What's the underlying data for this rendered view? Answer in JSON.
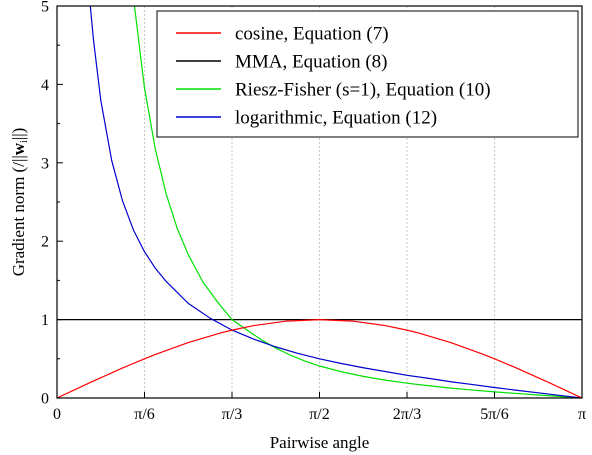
{
  "chart_data": {
    "type": "line",
    "title": "",
    "xlabel": "Pairwise angle",
    "ylabel_prefix": "Gradient norm (/||",
    "ylabel_bold": "w",
    "ylabel_sub": "i",
    "ylabel_suffix": "||)",
    "xlim": [
      0,
      3.141593
    ],
    "ylim": [
      0,
      5
    ],
    "x_ticks": [
      {
        "value": 0,
        "label": "0"
      },
      {
        "value": 0.523599,
        "label": "π/6"
      },
      {
        "value": 1.047198,
        "label": "π/3"
      },
      {
        "value": 1.570796,
        "label": "π/2"
      },
      {
        "value": 2.094395,
        "label": "2π/3"
      },
      {
        "value": 2.617994,
        "label": "5π/6"
      },
      {
        "value": 3.141593,
        "label": "π"
      }
    ],
    "y_ticks": [
      {
        "value": 0,
        "label": "0"
      },
      {
        "value": 1,
        "label": "1"
      },
      {
        "value": 2,
        "label": "2"
      },
      {
        "value": 3,
        "label": "3"
      },
      {
        "value": 4,
        "label": "4"
      },
      {
        "value": 5,
        "label": "5"
      }
    ],
    "grid": "vertical dotted",
    "legend_position": "top-right",
    "series": [
      {
        "name": "cosine, Equation (7)",
        "color": "#ff0000",
        "x": [
          0,
          0.1963,
          0.3927,
          0.5236,
          0.589,
          0.7854,
          0.9817,
          1.0472,
          1.1781,
          1.3744,
          1.5708,
          1.7671,
          1.9635,
          2.0944,
          2.1598,
          2.3562,
          2.5525,
          2.618,
          2.7489,
          2.9452,
          3.1416
        ],
        "y": [
          0,
          0.195,
          0.383,
          0.5,
          0.556,
          0.707,
          0.831,
          0.866,
          0.924,
          0.981,
          1.0,
          0.981,
          0.924,
          0.866,
          0.831,
          0.707,
          0.556,
          0.5,
          0.383,
          0.195,
          0
        ]
      },
      {
        "name": "MMA, Equation (8)",
        "color": "#000000",
        "x": [
          0,
          3.1416
        ],
        "y": [
          1,
          1
        ]
      },
      {
        "name": "Riesz-Fisher (s=1), Equation (10)",
        "color": "#00e000",
        "x": [
          0.4636,
          0.5236,
          0.589,
          0.6545,
          0.72,
          0.7854,
          0.8727,
          0.9599,
          1.0472,
          1.1345,
          1.2217,
          1.309,
          1.3963,
          1.4835,
          1.5708,
          1.7017,
          1.8326,
          1.9635,
          2.0944,
          2.2253,
          2.3562,
          2.4871,
          2.618,
          2.7489,
          2.8798,
          3.0107,
          3.1416
        ],
        "y": [
          5.0,
          3.955,
          3.167,
          2.593,
          2.16,
          1.828,
          1.481,
          1.226,
          1.0,
          0.87,
          0.744,
          0.637,
          0.547,
          0.471,
          0.408,
          0.335,
          0.276,
          0.228,
          0.189,
          0.156,
          0.126,
          0.101,
          0.078,
          0.058,
          0.038,
          0.019,
          0.0
        ]
      },
      {
        "name": "logarithmic, Equation (12)",
        "color": "#0000cc",
        "x": [
          0.1993,
          0.2182,
          0.2618,
          0.3272,
          0.3927,
          0.4581,
          0.5236,
          0.589,
          0.6545,
          0.7854,
          0.9163,
          1.0472,
          1.1781,
          1.309,
          1.4399,
          1.5708,
          1.7017,
          1.8326,
          1.9635,
          2.0944,
          2.2253,
          2.3562,
          2.4871,
          2.618,
          2.7489,
          2.8798,
          3.0107,
          3.1416
        ],
        "y": [
          5.0,
          4.57,
          3.8,
          3.03,
          2.51,
          2.14,
          1.866,
          1.653,
          1.483,
          1.207,
          1.018,
          0.866,
          0.75,
          0.652,
          0.57,
          0.5,
          0.44,
          0.386,
          0.338,
          0.289,
          0.25,
          0.207,
          0.171,
          0.134,
          0.099,
          0.066,
          0.033,
          0.0
        ]
      }
    ]
  }
}
